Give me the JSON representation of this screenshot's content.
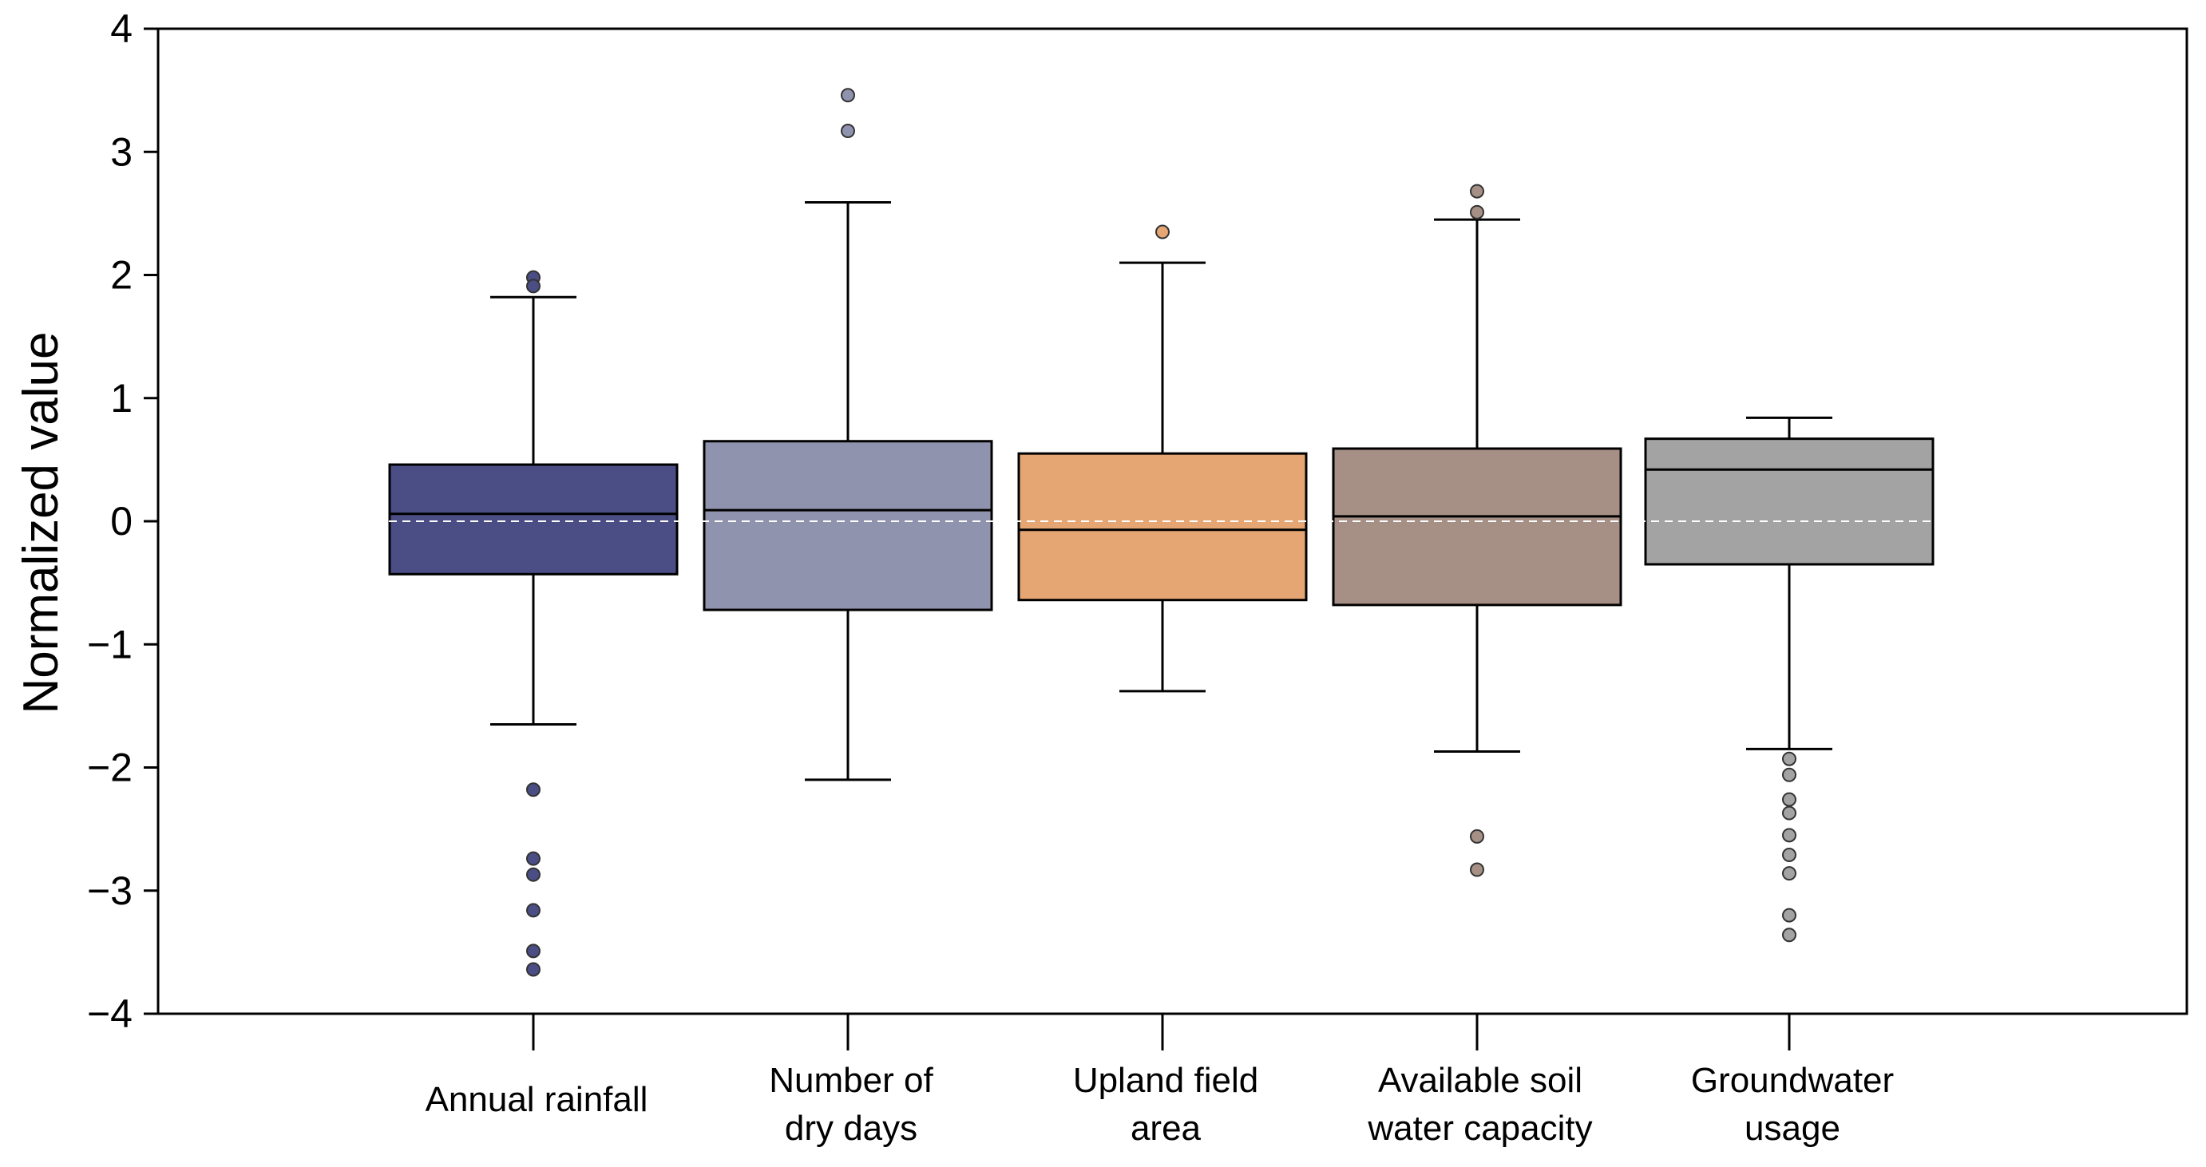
{
  "chart_data": {
    "type": "box",
    "title": "",
    "xlabel": "",
    "ylabel": "Normalized value",
    "ylim": [
      -4,
      4
    ],
    "yticks": [
      4,
      3,
      2,
      1,
      0,
      -1,
      -2,
      -3,
      -4
    ],
    "ytick_labels": [
      "4",
      "3",
      "2",
      "1",
      "0",
      "−1",
      "−2",
      "−3",
      "−4"
    ],
    "reference_line": 0,
    "grid": false,
    "categories": [
      {
        "lines": [
          "Annual rainfall"
        ],
        "color": "#4a4e84",
        "whisker_low": -1.65,
        "q1": -0.43,
        "median": 0.06,
        "q3": 0.46,
        "whisker_high": 1.82,
        "outliers": [
          1.98,
          1.91,
          -2.18,
          -2.74,
          -2.87,
          -3.16,
          -3.49,
          -3.64
        ]
      },
      {
        "lines": [
          "Number of",
          "dry days"
        ],
        "color": "#9093ad",
        "whisker_low": -2.1,
        "q1": -0.72,
        "median": 0.09,
        "q3": 0.65,
        "whisker_high": 2.59,
        "outliers": [
          3.46,
          3.17
        ]
      },
      {
        "lines": [
          "Upland field",
          "area"
        ],
        "color": "#e5a673",
        "whisker_low": -1.38,
        "q1": -0.64,
        "median": -0.07,
        "q3": 0.55,
        "whisker_high": 2.1,
        "outliers": [
          2.35
        ]
      },
      {
        "lines": [
          "Available soil",
          "water capacity"
        ],
        "color": "#a69086",
        "whisker_low": -1.87,
        "q1": -0.68,
        "median": 0.04,
        "q3": 0.59,
        "whisker_high": 2.45,
        "outliers": [
          2.68,
          2.51,
          -2.56,
          -2.83
        ]
      },
      {
        "lines": [
          "Groundwater",
          "usage"
        ],
        "color": "#a3a3a3",
        "whisker_low": -1.85,
        "q1": -0.35,
        "median": 0.42,
        "q3": 0.67,
        "whisker_high": 0.84,
        "outliers": [
          -1.93,
          -2.06,
          -2.26,
          -2.37,
          -2.55,
          -2.71,
          -2.86,
          -3.2,
          -3.36
        ]
      }
    ]
  }
}
